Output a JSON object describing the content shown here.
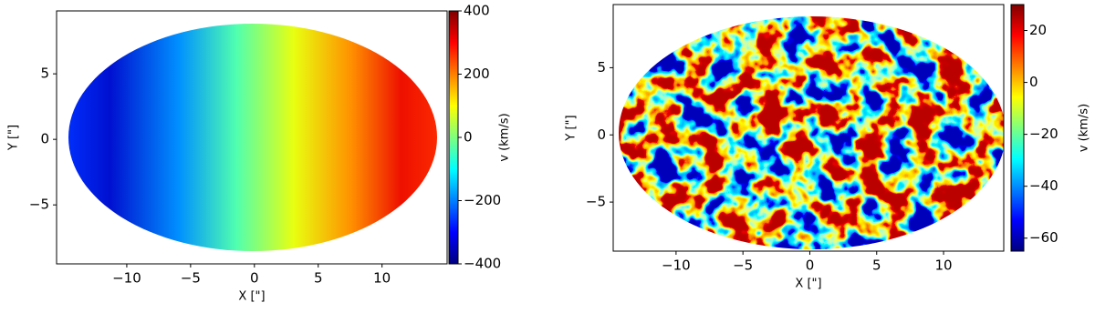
{
  "chart_data": [
    {
      "type": "heatmap",
      "xlabel": "X [\"]",
      "ylabel": "Y [\"]",
      "xlim": [
        -15.5,
        15.1
      ],
      "ylim": [
        -9.5,
        9.8
      ],
      "xticks": [
        {
          "value": -10,
          "label": "−10"
        },
        {
          "value": -5,
          "label": "−5"
        },
        0,
        5,
        10
      ],
      "yticks": [
        {
          "value": -5,
          "label": "−5"
        },
        0,
        5
      ],
      "colorbar": {
        "label": "v (km/s)",
        "lim": [
          -400,
          400
        ],
        "ticks": [
          {
            "value": -400,
            "label": "−400"
          },
          {
            "value": -200,
            "label": "−200"
          },
          0,
          200,
          400
        ]
      }
    },
    {
      "type": "heatmap",
      "xlabel": "X [\"]",
      "ylabel": "Y [\"]",
      "xlim": [
        -14.7,
        14.5
      ],
      "ylim": [
        -8.65,
        9.7
      ],
      "xticks": [
        {
          "value": -10,
          "label": "−10"
        },
        {
          "value": -5,
          "label": "−5"
        },
        0,
        5,
        10
      ],
      "yticks": [
        {
          "value": -5,
          "label": "−5"
        },
        0,
        5
      ],
      "colorbar": {
        "label": "v (km/s)",
        "lim": [
          -65,
          30
        ],
        "ticks": [
          {
            "value": -60,
            "label": "−60"
          },
          {
            "value": -40,
            "label": "−40"
          },
          {
            "value": -20,
            "label": "−20"
          },
          0,
          20
        ]
      }
    }
  ]
}
